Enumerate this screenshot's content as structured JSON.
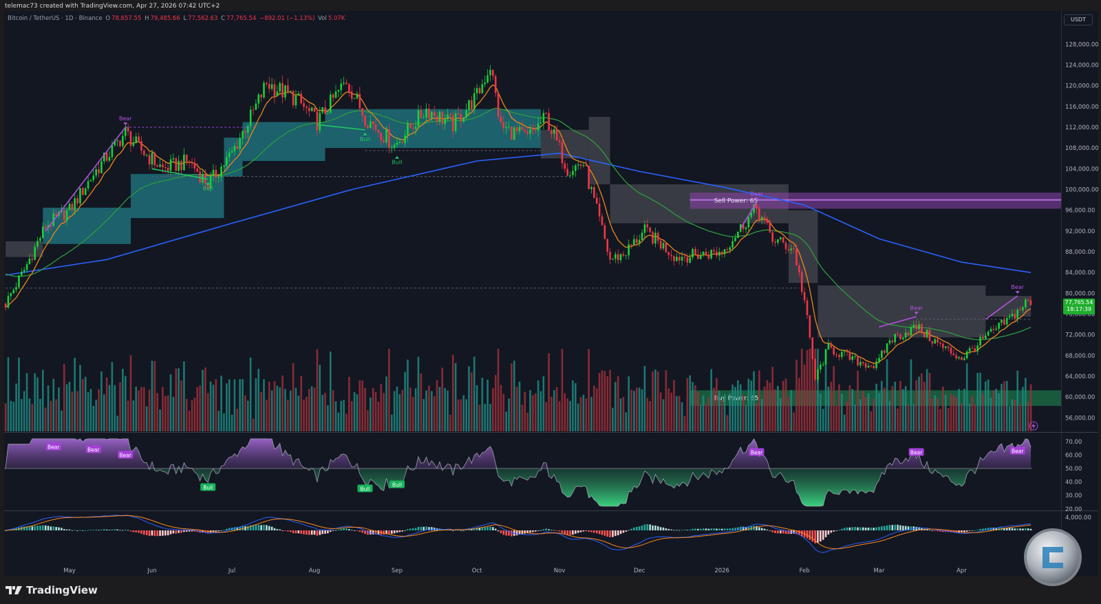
{
  "header": {
    "attribution": "telemac73 created with TradingView.com, Apr 27, 2026 07:42 UTC+2",
    "symbol": "Bitcoin / TetherUS · 1D · Binance",
    "o_label": "O",
    "open": "78,657.55",
    "h_label": "H",
    "high": "79,485.66",
    "l_label": "L",
    "low": "77,562.63",
    "c_label": "C",
    "close": "77,765.54",
    "change": "−892.01 (−1.13%)",
    "vol_label": "Vol",
    "volume": "5.07K"
  },
  "currency_button": "USDT",
  "last_price": {
    "value": "77,765.54",
    "countdown": "18:17:39",
    "color": "#1fae2e"
  },
  "footer": {
    "brand": "TradingView"
  },
  "colors": {
    "up": "#19d13a",
    "down": "#f23645",
    "ema_fast": "#f0861c",
    "ema_slow": "#2e9b3e",
    "ma_long": "#2962ff",
    "teal_cloud": "#1f6e78",
    "gray_cloud": "#4a4b52",
    "sell_zone": "#8e44ad",
    "buy_zone": "#1b6b45",
    "bear": "#b452e0",
    "bull": "#22c55e"
  },
  "chart_data": {
    "type": "candlestick",
    "symbol": "BTCUSDT",
    "interval": "1D",
    "x_ticks": [
      {
        "date": "2025-05-01",
        "label": "May"
      },
      {
        "date": "2025-06-01",
        "label": "Jun"
      },
      {
        "date": "2025-07-01",
        "label": "Jul"
      },
      {
        "date": "2025-08-01",
        "label": "Aug"
      },
      {
        "date": "2025-09-01",
        "label": "Sep"
      },
      {
        "date": "2025-10-01",
        "label": "Oct"
      },
      {
        "date": "2025-11-01",
        "label": "Nov"
      },
      {
        "date": "2025-12-01",
        "label": "Dec"
      },
      {
        "date": "2026-01-01",
        "label": "2026"
      },
      {
        "date": "2026-02-01",
        "label": "Feb"
      },
      {
        "date": "2026-03-01",
        "label": "Mar"
      },
      {
        "date": "2026-04-01",
        "label": "Apr"
      }
    ],
    "y_ticks": [
      56000,
      60000,
      64000,
      68000,
      72000,
      76000,
      80000,
      84000,
      88000,
      92000,
      96000,
      100000,
      104000,
      108000,
      112000,
      116000,
      120000,
      124000,
      128000
    ],
    "y_range": [
      54000,
      132000
    ],
    "approx_closes": [
      [
        "2025-04-07",
        78000
      ],
      [
        "2025-04-14",
        84500
      ],
      [
        "2025-04-22",
        93000
      ],
      [
        "2025-05-01",
        96000
      ],
      [
        "2025-05-10",
        103000
      ],
      [
        "2025-05-22",
        111000
      ],
      [
        "2025-05-27",
        108000
      ],
      [
        "2025-06-05",
        104000
      ],
      [
        "2025-06-15",
        105500
      ],
      [
        "2025-06-22",
        101000
      ],
      [
        "2025-07-01",
        107000
      ],
      [
        "2025-07-10",
        116000
      ],
      [
        "2025-07-14",
        120500
      ],
      [
        "2025-07-25",
        117500
      ],
      [
        "2025-08-02",
        113000
      ],
      [
        "2025-08-13",
        121000
      ],
      [
        "2025-08-20",
        114000
      ],
      [
        "2025-08-31",
        108500
      ],
      [
        "2025-09-12",
        115500
      ],
      [
        "2025-09-22",
        112500
      ],
      [
        "2025-10-01",
        118000
      ],
      [
        "2025-10-06",
        124000
      ],
      [
        "2025-10-10",
        112000
      ],
      [
        "2025-10-20",
        110000
      ],
      [
        "2025-10-27",
        114000
      ],
      [
        "2025-11-04",
        104000
      ],
      [
        "2025-11-10",
        105000
      ],
      [
        "2025-11-20",
        86500
      ],
      [
        "2025-11-25",
        87500
      ],
      [
        "2025-12-03",
        92000
      ],
      [
        "2025-12-15",
        87000
      ],
      [
        "2025-12-25",
        87500
      ],
      [
        "2026-01-01",
        88000
      ],
      [
        "2026-01-14",
        96500
      ],
      [
        "2026-01-20",
        90500
      ],
      [
        "2026-01-28",
        88500
      ],
      [
        "2026-02-01",
        78500
      ],
      [
        "2026-02-05",
        63500
      ],
      [
        "2026-02-10",
        69500
      ],
      [
        "2026-02-20",
        67000
      ],
      [
        "2026-02-28",
        66000
      ],
      [
        "2026-03-05",
        71000
      ],
      [
        "2026-03-15",
        73500
      ],
      [
        "2026-03-25",
        69500
      ],
      [
        "2026-04-01",
        67500
      ],
      [
        "2026-04-10",
        71500
      ],
      [
        "2026-04-20",
        75500
      ],
      [
        "2026-04-26",
        78657.55
      ]
    ],
    "last_bar": {
      "date": "2026-04-27",
      "open": 78657.55,
      "high": 79485.66,
      "low": 77562.63,
      "close": 77765.54
    },
    "ma_long": [
      [
        "2025-04-07",
        83500
      ],
      [
        "2025-05-15",
        86500
      ],
      [
        "2025-07-01",
        93500
      ],
      [
        "2025-08-15",
        100000
      ],
      [
        "2025-10-01",
        105500
      ],
      [
        "2025-11-01",
        107000
      ],
      [
        "2025-12-01",
        103500
      ],
      [
        "2026-01-01",
        100500
      ],
      [
        "2026-02-01",
        97000
      ],
      [
        "2026-03-01",
        90500
      ],
      [
        "2026-04-01",
        86000
      ],
      [
        "2026-04-27",
        84000
      ]
    ],
    "clouds": [
      {
        "from": "2025-04-07",
        "to": "2025-04-21",
        "top": 90000,
        "bottom": 87000,
        "kind": "gray"
      },
      {
        "from": "2025-04-21",
        "to": "2025-05-24",
        "top": 96500,
        "bottom": 89500,
        "kind": "teal"
      },
      {
        "from": "2025-05-24",
        "to": "2025-06-28",
        "top": 103000,
        "bottom": 94500,
        "kind": "teal"
      },
      {
        "from": "2025-06-28",
        "to": "2025-07-05",
        "top": 110000,
        "bottom": 102500,
        "kind": "teal"
      },
      {
        "from": "2025-07-05",
        "to": "2025-08-05",
        "top": 113000,
        "bottom": 105500,
        "kind": "teal"
      },
      {
        "from": "2025-08-05",
        "to": "2025-10-25",
        "top": 115500,
        "bottom": 108000,
        "kind": "teal"
      },
      {
        "from": "2025-10-25",
        "to": "2025-11-12",
        "top": 111500,
        "bottom": 106000,
        "kind": "gray"
      },
      {
        "from": "2025-11-12",
        "to": "2025-11-20",
        "top": 114000,
        "bottom": 101000,
        "kind": "gray"
      },
      {
        "from": "2025-11-20",
        "to": "2026-01-26",
        "top": 101000,
        "bottom": 93500,
        "kind": "gray"
      },
      {
        "from": "2026-01-26",
        "to": "2026-02-06",
        "top": 96000,
        "bottom": 82000,
        "kind": "gray"
      },
      {
        "from": "2026-02-06",
        "to": "2026-04-10",
        "top": 81500,
        "bottom": 71500,
        "kind": "gray"
      },
      {
        "from": "2026-04-10",
        "to": "2026-04-27",
        "top": 79500,
        "bottom": 75500,
        "kind": "gray"
      }
    ],
    "levels": [
      {
        "from": "2025-05-22",
        "to": "2025-07-10",
        "price": 112000,
        "kind": "bear"
      },
      {
        "from": "2025-06-01",
        "to": "2025-11-05",
        "price": 102500,
        "kind": "neutral"
      },
      {
        "from": "2025-08-20",
        "to": "2025-10-25",
        "price": 107500,
        "kind": "neutral"
      },
      {
        "from": "2025-04-07",
        "to": "2026-01-30",
        "price": 81000,
        "kind": "neutral"
      },
      {
        "from": "2026-03-15",
        "to": "2026-04-27",
        "price": 75000,
        "kind": "neutral"
      }
    ],
    "zones": [
      {
        "label": "Sell Power: 65",
        "from": "2025-12-20",
        "top": 99400,
        "bottom": 96300,
        "line": 98000,
        "kind": "sell"
      },
      {
        "label": "Buy Power: 65",
        "from": "2025-12-20",
        "top": 61300,
        "bottom": 58300,
        "kind": "buy"
      }
    ],
    "divergences": [
      {
        "kind": "bear",
        "points": [
          [
            "2025-04-22",
            92000
          ],
          [
            "2025-05-10",
            104000
          ],
          [
            "2025-05-22",
            112000
          ]
        ],
        "label": "Bear"
      },
      {
        "kind": "bull",
        "points": [
          [
            "2025-06-01",
            104000
          ],
          [
            "2025-06-22",
            102000
          ]
        ],
        "label": "Bull"
      },
      {
        "kind": "bull",
        "points": [
          [
            "2025-08-02",
            112500
          ],
          [
            "2025-08-20",
            111500
          ]
        ],
        "label": "Bull"
      },
      {
        "kind": "bull",
        "points": [
          [
            "2025-09-01",
            107000
          ]
        ],
        "label": "Bull"
      },
      {
        "kind": "bear",
        "points": [
          [
            "2026-01-08",
            92500
          ],
          [
            "2026-01-14",
            97500
          ]
        ],
        "label": "Bear"
      },
      {
        "kind": "bear",
        "points": [
          [
            "2026-03-01",
            73500
          ],
          [
            "2026-03-15",
            75500
          ]
        ],
        "label": "Bear"
      },
      {
        "kind": "bear",
        "points": [
          [
            "2026-04-10",
            75000
          ],
          [
            "2026-04-22",
            79500
          ]
        ],
        "label": "Bear"
      }
    ],
    "rsi": {
      "y_ticks": [
        20,
        30,
        40,
        50,
        60,
        70
      ],
      "labels": [
        {
          "date": "2025-04-25",
          "value": 66,
          "text": "Bear",
          "kind": "bear"
        },
        {
          "date": "2025-05-10",
          "value": 64,
          "text": "Bear",
          "kind": "bear"
        },
        {
          "date": "2025-05-22",
          "value": 60,
          "text": "Bear",
          "kind": "bear"
        },
        {
          "date": "2025-06-22",
          "value": 36,
          "text": "Bull",
          "kind": "bull"
        },
        {
          "date": "2025-08-20",
          "value": 35,
          "text": "Bull",
          "kind": "bull"
        },
        {
          "date": "2025-09-01",
          "value": 38,
          "text": "Bull",
          "kind": "bull"
        },
        {
          "date": "2026-01-14",
          "value": 62,
          "text": "Bear",
          "kind": "bear"
        },
        {
          "date": "2026-03-15",
          "value": 62,
          "text": "Bear",
          "kind": "bear"
        },
        {
          "date": "2026-04-22",
          "value": 63,
          "text": "Bear",
          "kind": "bear"
        }
      ]
    },
    "macd": {
      "y_ticks": [
        4000
      ]
    }
  }
}
